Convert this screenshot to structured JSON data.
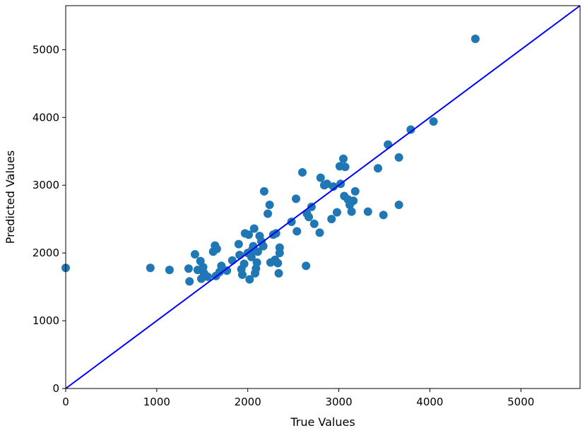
{
  "chart_data": {
    "type": "scatter",
    "title": "",
    "xlabel": "True Values",
    "ylabel": "Predicted Values",
    "xlim": [
      0,
      5650
    ],
    "ylim": [
      0,
      5650
    ],
    "xticks": [
      0,
      1000,
      2000,
      3000,
      4000,
      5000
    ],
    "yticks": [
      0,
      1000,
      2000,
      3000,
      4000,
      5000
    ],
    "grid": false,
    "legend": "none",
    "point_color": "#1f77b4",
    "line_color": "#0000ff",
    "reference_line": {
      "from": [
        0,
        0
      ],
      "to": [
        5650,
        5650
      ]
    },
    "points": [
      [
        0,
        1780
      ],
      [
        930,
        1780
      ],
      [
        1140,
        1750
      ],
      [
        1350,
        1770
      ],
      [
        1360,
        1580
      ],
      [
        1420,
        1980
      ],
      [
        1450,
        1750
      ],
      [
        1480,
        1880
      ],
      [
        1490,
        1620
      ],
      [
        1510,
        1790
      ],
      [
        1520,
        1700
      ],
      [
        1560,
        1650
      ],
      [
        1620,
        2020
      ],
      [
        1640,
        2110
      ],
      [
        1660,
        2060
      ],
      [
        1650,
        1660
      ],
      [
        1690,
        1720
      ],
      [
        1710,
        1810
      ],
      [
        1770,
        1740
      ],
      [
        1830,
        1890
      ],
      [
        1900,
        2130
      ],
      [
        1910,
        1970
      ],
      [
        1930,
        1760
      ],
      [
        1940,
        1680
      ],
      [
        1960,
        1840
      ],
      [
        1970,
        2290
      ],
      [
        2010,
        2270
      ],
      [
        2000,
        2000
      ],
      [
        2020,
        1610
      ],
      [
        2040,
        1940
      ],
      [
        2050,
        2050
      ],
      [
        2060,
        2100
      ],
      [
        2070,
        2360
      ],
      [
        2080,
        1700
      ],
      [
        2090,
        1770
      ],
      [
        2100,
        1860
      ],
      [
        2110,
        2020
      ],
      [
        2130,
        2250
      ],
      [
        2150,
        2170
      ],
      [
        2170,
        2100
      ],
      [
        2180,
        2910
      ],
      [
        2220,
        2580
      ],
      [
        2240,
        2710
      ],
      [
        2250,
        1860
      ],
      [
        2280,
        2270
      ],
      [
        2300,
        1900
      ],
      [
        2310,
        2290
      ],
      [
        2330,
        1850
      ],
      [
        2340,
        1700
      ],
      [
        2350,
        2000
      ],
      [
        2350,
        2080
      ],
      [
        2480,
        2460
      ],
      [
        2530,
        2800
      ],
      [
        2540,
        2320
      ],
      [
        2600,
        3190
      ],
      [
        2640,
        1810
      ],
      [
        2650,
        2580
      ],
      [
        2670,
        2530
      ],
      [
        2700,
        2680
      ],
      [
        2730,
        2430
      ],
      [
        2790,
        2300
      ],
      [
        2800,
        3110
      ],
      [
        2840,
        3000
      ],
      [
        2870,
        3020
      ],
      [
        2920,
        2500
      ],
      [
        2940,
        2980
      ],
      [
        2980,
        2600
      ],
      [
        3010,
        3280
      ],
      [
        3020,
        3020
      ],
      [
        3050,
        3390
      ],
      [
        3060,
        2840
      ],
      [
        3070,
        3270
      ],
      [
        3100,
        2790
      ],
      [
        3120,
        2710
      ],
      [
        3130,
        2750
      ],
      [
        3140,
        2610
      ],
      [
        3160,
        2770
      ],
      [
        3180,
        2910
      ],
      [
        3320,
        2610
      ],
      [
        3430,
        3250
      ],
      [
        3490,
        2560
      ],
      [
        3540,
        3600
      ],
      [
        3660,
        2710
      ],
      [
        3660,
        3410
      ],
      [
        3790,
        3820
      ],
      [
        4040,
        3940
      ],
      [
        4500,
        5160
      ]
    ]
  }
}
